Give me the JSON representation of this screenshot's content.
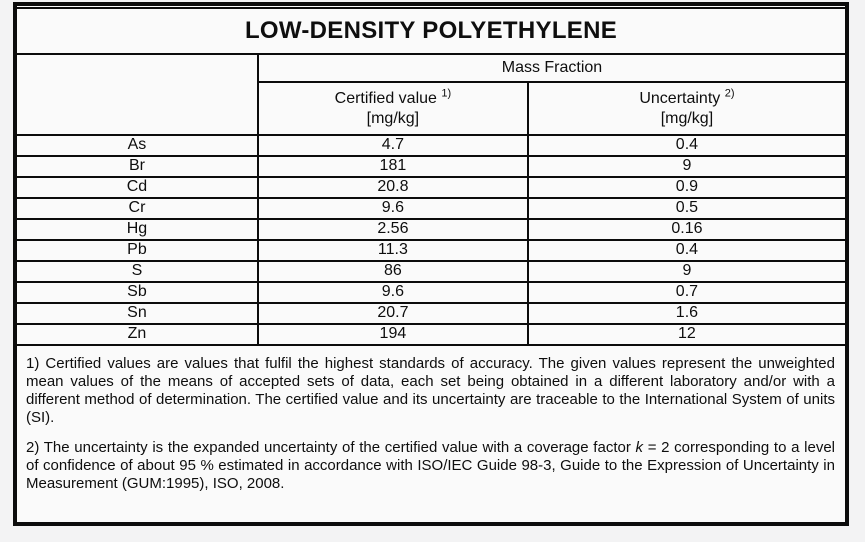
{
  "title": "LOW-DENSITY POLYETHYLENE",
  "table": {
    "group_header": "Mass Fraction",
    "columns": [
      {
        "label": "Certified value",
        "sup": "1)",
        "unit": "[mg/kg]"
      },
      {
        "label": "Uncertainty",
        "sup": "2)",
        "unit": "[mg/kg]"
      }
    ],
    "rows": [
      {
        "element": "As",
        "certified": "4.7",
        "uncertainty": "0.4"
      },
      {
        "element": "Br",
        "certified": "181",
        "uncertainty": "9"
      },
      {
        "element": "Cd",
        "certified": "20.8",
        "uncertainty": "0.9"
      },
      {
        "element": "Cr",
        "certified": "9.6",
        "uncertainty": "0.5"
      },
      {
        "element": "Hg",
        "certified": "2.56",
        "uncertainty": "0.16"
      },
      {
        "element": "Pb",
        "certified": "11.3",
        "uncertainty": "0.4"
      },
      {
        "element": "S",
        "certified": "86",
        "uncertainty": "9"
      },
      {
        "element": "Sb",
        "certified": "9.6",
        "uncertainty": "0.7"
      },
      {
        "element": "Sn",
        "certified": "20.7",
        "uncertainty": "1.6"
      },
      {
        "element": "Zn",
        "certified": "194",
        "uncertainty": "12"
      }
    ]
  },
  "footnotes": {
    "note1": "1) Certified values are values that fulfil the highest standards of accuracy. The given values represent the unweighted mean values of the means of accepted sets of data, each set being obtained in a different laboratory and/or with a different method of determination. The certified value and its uncertainty are traceable to the International System of units (SI).",
    "note2_pre": "2) The uncertainty is the expanded uncertainty of the certified value with a coverage factor ",
    "note2_var": "k",
    "note2_post": " = 2 corresponding to a level of confidence of about 95 % estimated in accordance with ISO/IEC Guide 98-3, Guide to the Expression of Uncertainty in Measurement (GUM:1995), ISO, 2008."
  },
  "colors": {
    "border": "#0c0c0c",
    "page_background": "#f3f3f4",
    "table_background": "#fafafa"
  }
}
